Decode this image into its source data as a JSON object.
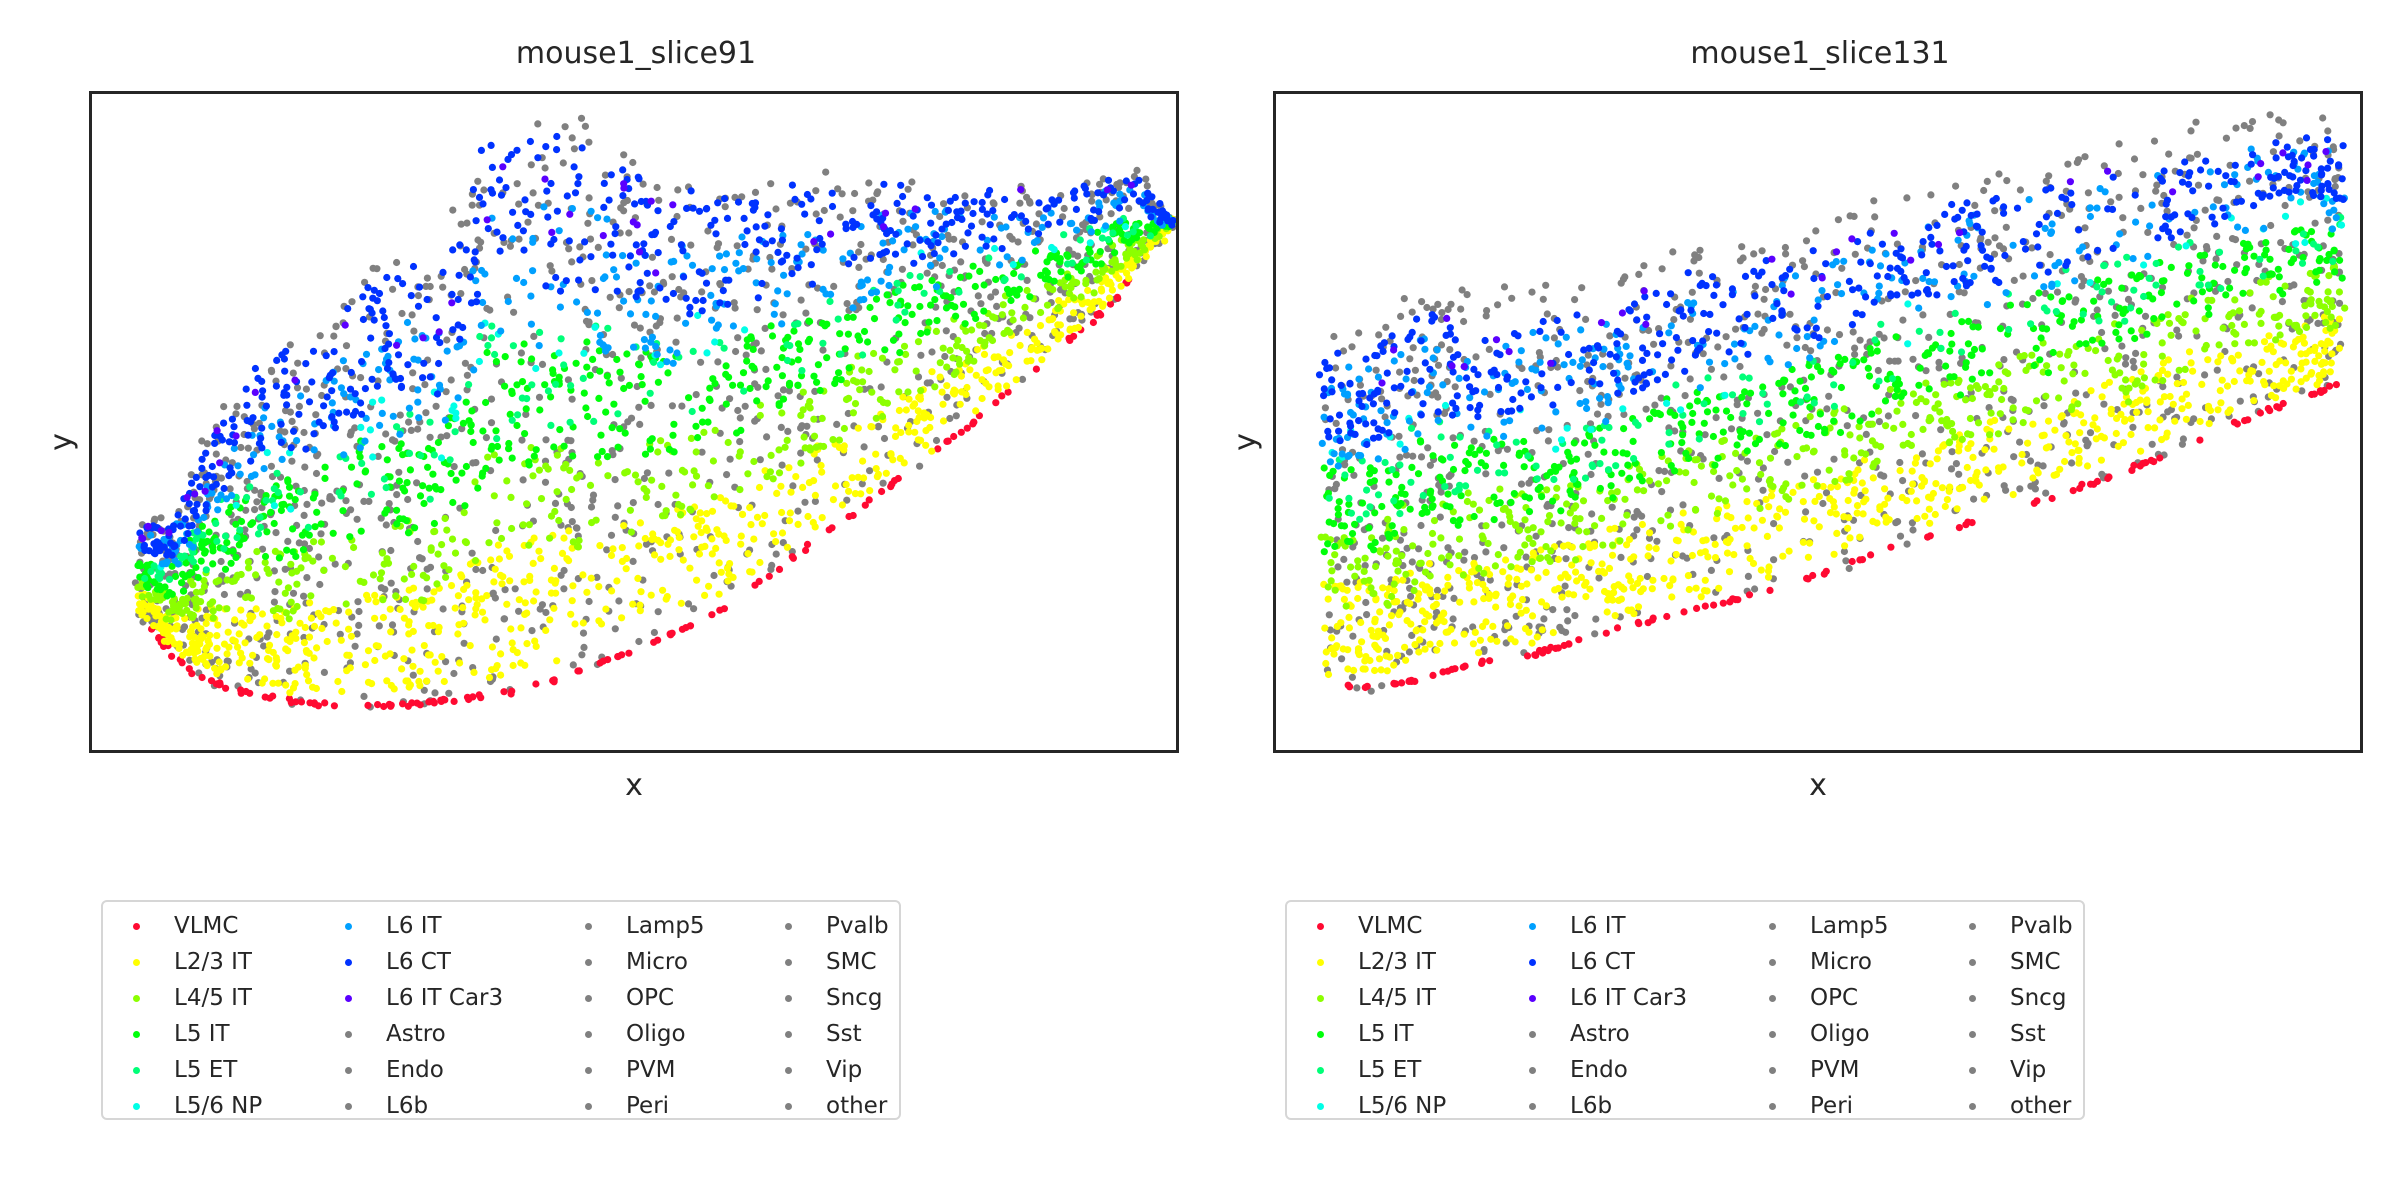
{
  "chart_data": [
    {
      "type": "scatter",
      "title": "mouse1_slice91",
      "xlabel": "x",
      "ylabel": "y",
      "grid": false,
      "legend_position": "bottom-below",
      "regions": [
        {
          "name": "VLMC",
          "layer": "band",
          "start": 0.995,
          "end": 1.0,
          "n": 140
        },
        {
          "name": "L2/3 IT",
          "layer": "band",
          "start": 0.74,
          "end": 0.97,
          "n": 700
        },
        {
          "name": "L4/5 IT",
          "layer": "band",
          "start": 0.58,
          "end": 0.78,
          "n": 420
        },
        {
          "name": "L5 IT",
          "layer": "band",
          "start": 0.4,
          "end": 0.62,
          "n": 500
        },
        {
          "name": "L5 ET",
          "layer": "band",
          "start": 0.36,
          "end": 0.56,
          "n": 140
        },
        {
          "name": "L5/6 NP",
          "layer": "band",
          "start": 0.3,
          "end": 0.48,
          "n": 40
        },
        {
          "name": "L6 IT",
          "layer": "band",
          "start": 0.15,
          "end": 0.42,
          "n": 300
        },
        {
          "name": "L6 CT",
          "layer": "band",
          "start": 0.04,
          "end": 0.32,
          "n": 500
        },
        {
          "name": "L6 IT Car3",
          "layer": "band",
          "start": 0.04,
          "end": 0.22,
          "n": 40
        },
        {
          "name": "other",
          "layer": "band",
          "start": 0.0,
          "end": 1.0,
          "n": 1100
        }
      ]
    },
    {
      "type": "scatter",
      "title": "mouse1_slice131",
      "xlabel": "x",
      "ylabel": "y",
      "grid": false,
      "legend_position": "bottom-below",
      "regions": [
        {
          "name": "VLMC",
          "layer": "band",
          "start": 0.995,
          "end": 1.0,
          "n": 110
        },
        {
          "name": "L2/3 IT",
          "layer": "band",
          "start": 0.72,
          "end": 0.97,
          "n": 650
        },
        {
          "name": "L4/5 IT",
          "layer": "band",
          "start": 0.55,
          "end": 0.78,
          "n": 450
        },
        {
          "name": "L5 IT",
          "layer": "band",
          "start": 0.4,
          "end": 0.62,
          "n": 420
        },
        {
          "name": "L5 ET",
          "layer": "band",
          "start": 0.36,
          "end": 0.55,
          "n": 130
        },
        {
          "name": "L5/6 NP",
          "layer": "band",
          "start": 0.3,
          "end": 0.46,
          "n": 30
        },
        {
          "name": "L6 IT",
          "layer": "band",
          "start": 0.12,
          "end": 0.4,
          "n": 260
        },
        {
          "name": "L6 CT",
          "layer": "band",
          "start": 0.08,
          "end": 0.34,
          "n": 420
        },
        {
          "name": "L6 IT Car3",
          "layer": "band",
          "start": 0.08,
          "end": 0.22,
          "n": 30
        },
        {
          "name": "other",
          "layer": "band",
          "start": 0.0,
          "end": 1.0,
          "n": 950
        }
      ]
    }
  ],
  "legend": {
    "items": [
      {
        "label": "VLMC",
        "color": "#ff0a32"
      },
      {
        "label": "L2/3 IT",
        "color": "#ffff00"
      },
      {
        "label": "L4/5 IT",
        "color": "#8cff00"
      },
      {
        "label": "L5 IT",
        "color": "#00ff0a"
      },
      {
        "label": "L5 ET",
        "color": "#00ff78"
      },
      {
        "label": "L5/6 NP",
        "color": "#00ffe6"
      },
      {
        "label": "L6 IT",
        "color": "#00a0ff"
      },
      {
        "label": "L6 CT",
        "color": "#0032ff"
      },
      {
        "label": "L6 IT Car3",
        "color": "#5a00ff"
      },
      {
        "label": "Astro",
        "color": "#808080"
      },
      {
        "label": "Endo",
        "color": "#808080"
      },
      {
        "label": "L6b",
        "color": "#808080"
      },
      {
        "label": "Lamp5",
        "color": "#808080"
      },
      {
        "label": "Micro",
        "color": "#808080"
      },
      {
        "label": "OPC",
        "color": "#808080"
      },
      {
        "label": "Oligo",
        "color": "#808080"
      },
      {
        "label": "PVM",
        "color": "#808080"
      },
      {
        "label": "Peri",
        "color": "#808080"
      },
      {
        "label": "Pvalb",
        "color": "#808080"
      },
      {
        "label": "SMC",
        "color": "#808080"
      },
      {
        "label": "Sncg",
        "color": "#808080"
      },
      {
        "label": "Sst",
        "color": "#808080"
      },
      {
        "label": "Vip",
        "color": "#808080"
      },
      {
        "label": "other",
        "color": "#808080"
      }
    ]
  }
}
